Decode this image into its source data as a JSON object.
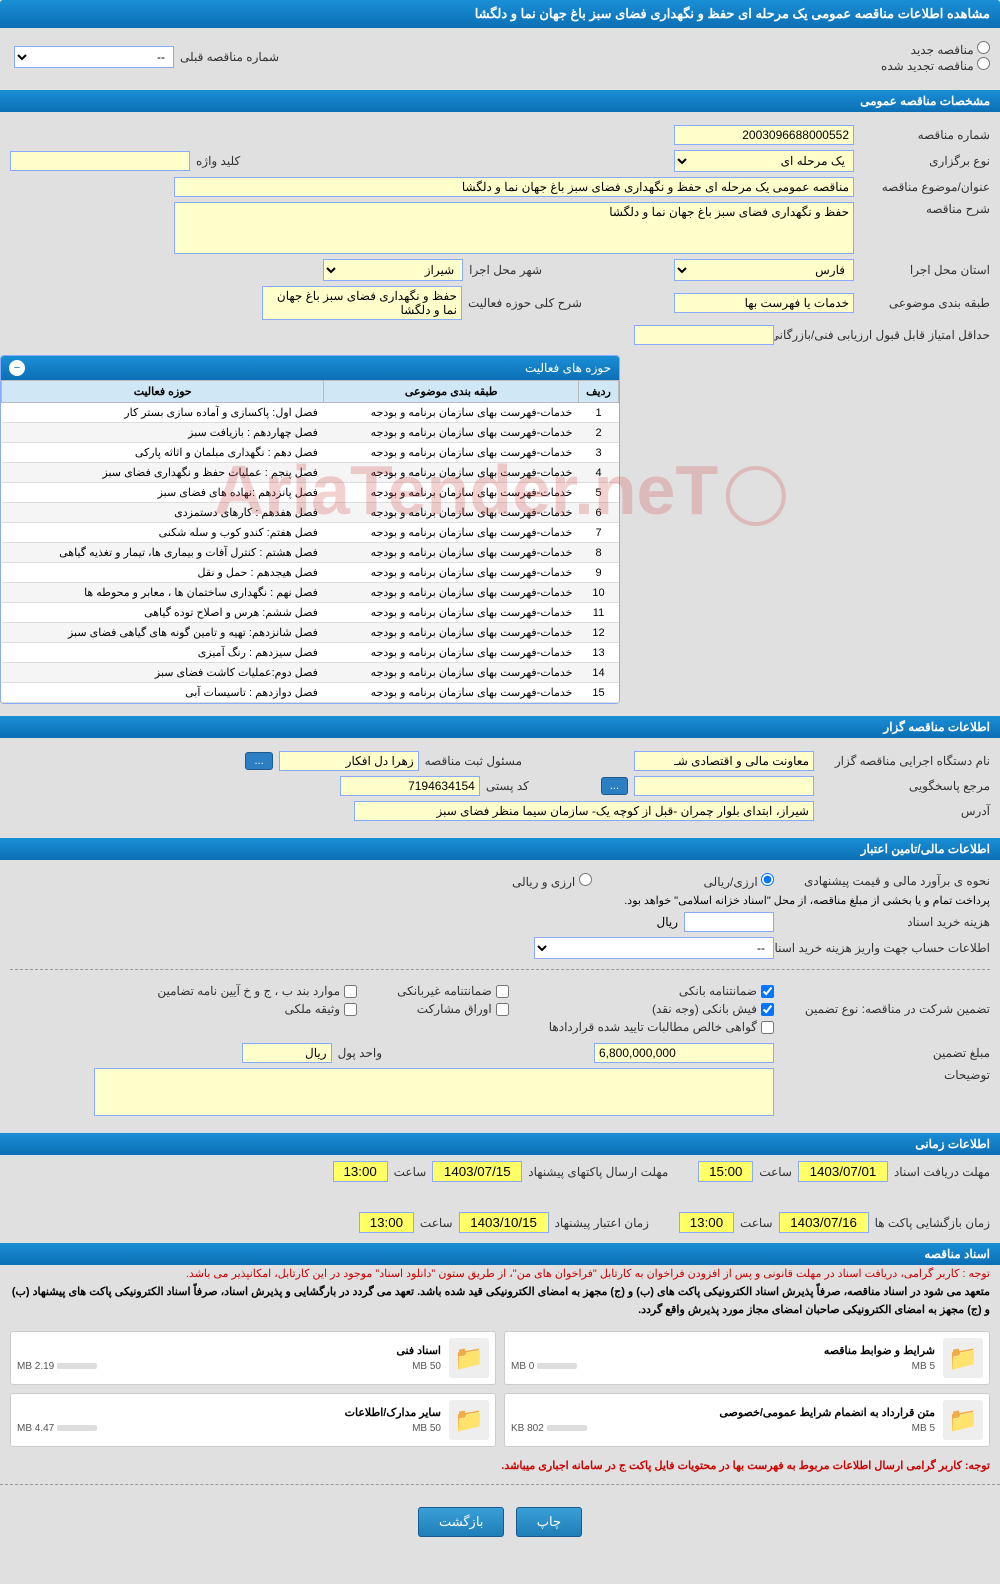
{
  "header": {
    "title": "مشاهده اطلاعات مناقصه عمومی یک مرحله ای حفظ و نگهداری فضای سبز باغ جهان نما و دلگشا"
  },
  "tender_type": {
    "new_label": "مناقصه جدید",
    "renewed_label": "مناقصه تجدید شده",
    "prev_number_label": "شماره مناقصه قبلی",
    "prev_number_placeholder": "--"
  },
  "general": {
    "section_title": "مشخصات مناقصه عمومی",
    "number_label": "شماره مناقصه",
    "number": "2003096688000552",
    "holding_type_label": "نوع برگزاری",
    "holding_type": "یک مرحله ای",
    "keyword_label": "کلید واژه",
    "keyword": "",
    "title_label": "عنوان/موضوع مناقصه",
    "title": "مناقصه عمومی یک مرحله ای حفظ و نگهداری فضای سبز باغ جهان نما و دلگشا",
    "desc_label": "شرح مناقصه",
    "desc": "حفظ و نگهداری فضای سبز باغ جهان نما و دلگشا",
    "province_label": "استان محل اجرا",
    "province": "فارس",
    "city_label": "شهر محل اجرا",
    "city": "شیراز",
    "category_label": "طبقه بندی موضوعی",
    "category": "خدمات یا فهرست بها",
    "activity_desc_label": "شرح کلی حوزه فعالیت",
    "activity_desc": "حفظ و نگهداری فضای سبز باغ جهان نما و دلگشا",
    "min_score_label": "حداقل امتیاز قابل قبول ارزیابی فنی/بازرگانی",
    "min_score": ""
  },
  "activity_panel": {
    "title": "حوزه های فعالیت",
    "col_row": "ردیف",
    "col_category": "طبقه بندی موضوعی",
    "col_area": "حوزه فعالیت",
    "rows": [
      {
        "n": "1",
        "cat": "خدمات-فهرست بهای سازمان برنامه و بودجه",
        "area": "فصل اول:  پاکسازی و آماده سازی بستر کار"
      },
      {
        "n": "2",
        "cat": "خدمات-فهرست بهای سازمان برنامه و بودجه",
        "area": "فصل چهاردهم : بازیافت سبز"
      },
      {
        "n": "3",
        "cat": "خدمات-فهرست بهای سازمان برنامه و بودجه",
        "area": "فصل دهم : نگهداری مبلمان و اثاثه پارکی"
      },
      {
        "n": "4",
        "cat": "خدمات-فهرست بهای سازمان برنامه و بودجه",
        "area": "فصل پنجم : عملیات حفظ و نگهداری فضای سبز"
      },
      {
        "n": "5",
        "cat": "خدمات-فهرست بهای سازمان برنامه و بودجه",
        "area": "فصل پانزدهم :نهاده های فضای سبز"
      },
      {
        "n": "6",
        "cat": "خدمات-فهرست بهای سازمان برنامه و بودجه",
        "area": "فصل هفدهم : کارهای دستمزدی"
      },
      {
        "n": "7",
        "cat": "خدمات-فهرست بهای سازمان برنامه و بودجه",
        "area": "فصل هفتم: کندو کوب و سله شکنی"
      },
      {
        "n": "8",
        "cat": "خدمات-فهرست بهای سازمان برنامه و بودجه",
        "area": "فصل هشتم : کنترل آفات و بیماری ها، تیمار و تغذیه گیاهی"
      },
      {
        "n": "9",
        "cat": "خدمات-فهرست بهای سازمان برنامه و بودجه",
        "area": "فصل هیجدهم : حمل و نقل"
      },
      {
        "n": "10",
        "cat": "خدمات-فهرست بهای سازمان برنامه و بودجه",
        "area": "فصل نهم : نگهداری ساختمان ها ، معابر و محوطه ها"
      },
      {
        "n": "11",
        "cat": "خدمات-فهرست بهای سازمان برنامه و بودجه",
        "area": "فصل ششم: هرس و اصلاح توده گیاهی"
      },
      {
        "n": "12",
        "cat": "خدمات-فهرست بهای سازمان برنامه و بودجه",
        "area": "فصل شانزدهم: تهیه و تامین گونه های گیاهی فضای سبز"
      },
      {
        "n": "13",
        "cat": "خدمات-فهرست بهای سازمان برنامه و بودجه",
        "area": "فصل سیزدهم : رنگ آمیزی"
      },
      {
        "n": "14",
        "cat": "خدمات-فهرست بهای سازمان برنامه و بودجه",
        "area": "فصل دوم:عملیات کاشت فضای سبز"
      },
      {
        "n": "15",
        "cat": "خدمات-فهرست بهای سازمان برنامه و بودجه",
        "area": "فصل دوازدهم : تاسیسات آبی"
      }
    ]
  },
  "organizer": {
    "section_title": "اطلاعات مناقصه گزار",
    "org_label": "نام دستگاه اجرایی مناقصه گزار",
    "org": "معاونت مالی و اقتصادی شـ",
    "registrar_label": "مسئول ثبت مناقصه",
    "registrar": "زهرا دل افکار",
    "ellipsis": "...",
    "responder_label": "مرجع پاسخگویی",
    "responder": "",
    "postal_label": "کد پستی",
    "postal": "7194634154",
    "address_label": "آدرس",
    "address": "شیراز، ابتدای بلوار چمران -قبل از کوچه یک- سازمان سیما منظر فضای سبز"
  },
  "financial": {
    "section_title": "اطلاعات مالی/تامین اعتبار",
    "estimate_label": "نحوه ی برآورد مالی و قیمت پیشنهادی",
    "rial_label": "ارزی/ریالی",
    "currency_label": "ارزی و ریالی",
    "payment_note": "پرداخت تمام و یا بخشی از مبلغ مناقصه، از محل \"اسناد خزانه اسلامی\" خواهد بود.",
    "doc_fee_label": "هزینه خرید اسناد",
    "rial_unit": "ریال",
    "account_label": "اطلاعات حساب جهت واریز هزینه خرید اسناد",
    "account_placeholder": "--",
    "guarantee_label": "تضمین شرکت در مناقصه:   نوع تضمین",
    "chk_bank": "ضمانتنامه بانکی",
    "chk_nonbank": "ضمانتنامه غیربانکی",
    "chk_clause": "موارد بند ب ، ج و خ آیین نامه تضامین",
    "chk_fish": "فیش بانکی (وجه نقد)",
    "chk_bonds": "اوراق مشارکت",
    "chk_property": "وثیقه ملکی",
    "chk_receivables": "گواهی خالص مطالبات تایید شده قراردادها",
    "amount_label": "مبلغ تضمین",
    "amount": "6,800,000,000",
    "unit_label": "واحد پول",
    "unit": "ریال",
    "notes_label": "توضیحات",
    "notes": ""
  },
  "schedule": {
    "section_title": "اطلاعات زمانی",
    "doc_receive_label": "مهلت دریافت اسناد",
    "doc_receive_date": "1403/07/01",
    "doc_receive_time": "15:00",
    "packet_send_label": "مهلت ارسال پاکتهای پیشنهاد",
    "packet_send_date": "1403/07/15",
    "packet_send_time": "13:00",
    "open_label": "زمان بازگشایی پاکت ها",
    "open_date": "1403/07/16",
    "open_time": "13:00",
    "validity_label": "زمان اعتبار پیشنهاد",
    "validity_date": "1403/10/15",
    "validity_time": "13:00",
    "time_label": "ساعت"
  },
  "documents": {
    "section_title": "اسناد مناقصه",
    "note1": "توجه : کاربر گرامی، دریافت اسناد در مهلت قانونی و پس از افزودن فراخوان به کارتابل \"فراخوان های من\"، از طریق ستون \"دانلود اسناد\" موجود در این کارتابل، امکانپذیر می باشد.",
    "note2": "متعهد می شود در اسناد مناقصه، صرفاً پذیرش اسناد الکترونیکی پاکت های (ب) و (ج) مجهز به امضای الکترونیکی قید شده باشد. تعهد می گردد در بارگشایی و پذیرش اسناد، صرفاً اسناد الکترونیکی پاکت های پیشنهاد (ب) و (ج) مجهز به امضای الکترونیکی صاحبان امضای مجاز مورد پذیرش واقع گردد.",
    "cards": [
      {
        "title": "شرایط و ضوابط مناقصه",
        "size": "0 MB",
        "max": "5 MB",
        "pct": 5
      },
      {
        "title": "اسناد فنی",
        "size": "2.19 MB",
        "max": "50 MB",
        "pct": 10
      },
      {
        "title": "متن قرارداد به انضمام شرایط عمومی/خصوصی",
        "size": "802 KB",
        "max": "5 MB",
        "pct": 20
      },
      {
        "title": "سایر مدارک/اطلاعات",
        "size": "4.47 MB",
        "max": "50 MB",
        "pct": 12
      }
    ],
    "footer_note": "توجه: کاربر گرامی ارسال اطلاعات مربوط به فهرست بها در محتویات فایل پاکت ج در سامانه اجباری میباشد."
  },
  "footer": {
    "print": "چاپ",
    "back": "بازگشت"
  },
  "watermark": "AriaTender.neT",
  "colors": {
    "header_bg": "#0c6fb5",
    "field_bg": "#ffffcc",
    "border": "#88aaff"
  }
}
